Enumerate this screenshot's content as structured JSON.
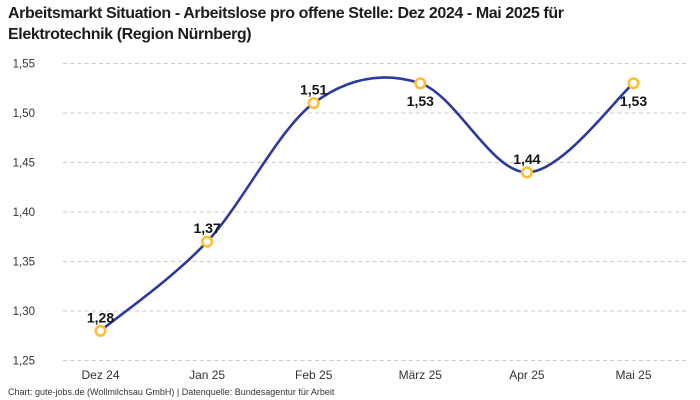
{
  "header": {
    "title": "Arbeitsmarkt Situation - Arbeitslose pro offene Stelle: Dez 2024 - Mai 2025 für Elektrotechnik (Region Nürnberg)"
  },
  "chart_data": {
    "type": "line",
    "title": "Arbeitsmarkt Situation - Arbeitslose pro offene Stelle: Dez 2024 - Mai 2025 für Elektrotechnik (Region Nürnberg)",
    "categories": [
      "Dez 24",
      "Jan 25",
      "Feb 25",
      "März 25",
      "Apr 25",
      "Mai 25"
    ],
    "values": [
      1.28,
      1.37,
      1.51,
      1.53,
      1.44,
      1.53
    ],
    "point_labels": [
      "1,28",
      "1,37",
      "1,51",
      "1,53",
      "1,44",
      "1,53"
    ],
    "label_positions": [
      "above",
      "above",
      "above",
      "below",
      "above",
      "below"
    ],
    "y_ticks": [
      "1,55",
      "1,50",
      "1,45",
      "1,40",
      "1,35",
      "1,30",
      "1,25"
    ],
    "y_tick_values": [
      1.55,
      1.5,
      1.45,
      1.4,
      1.35,
      1.3,
      1.25
    ],
    "ylim": [
      1.25,
      1.55
    ],
    "xlabel": "",
    "ylabel": "",
    "legend": "none",
    "grid": "horizontal-dashed",
    "curve": "smooth",
    "colors": {
      "line": "#2b3a9d",
      "marker_ring": "#f8c032",
      "marker_fill": "#ffffff",
      "grid": "#cccccc",
      "tick_text": "#333333",
      "point_label_text": "#141414"
    }
  },
  "footer": {
    "text": "Chart: gute-jobs.de (Wollmilchsau GmbH) | Datenquelle: Bundesagentur für Arbeit"
  }
}
